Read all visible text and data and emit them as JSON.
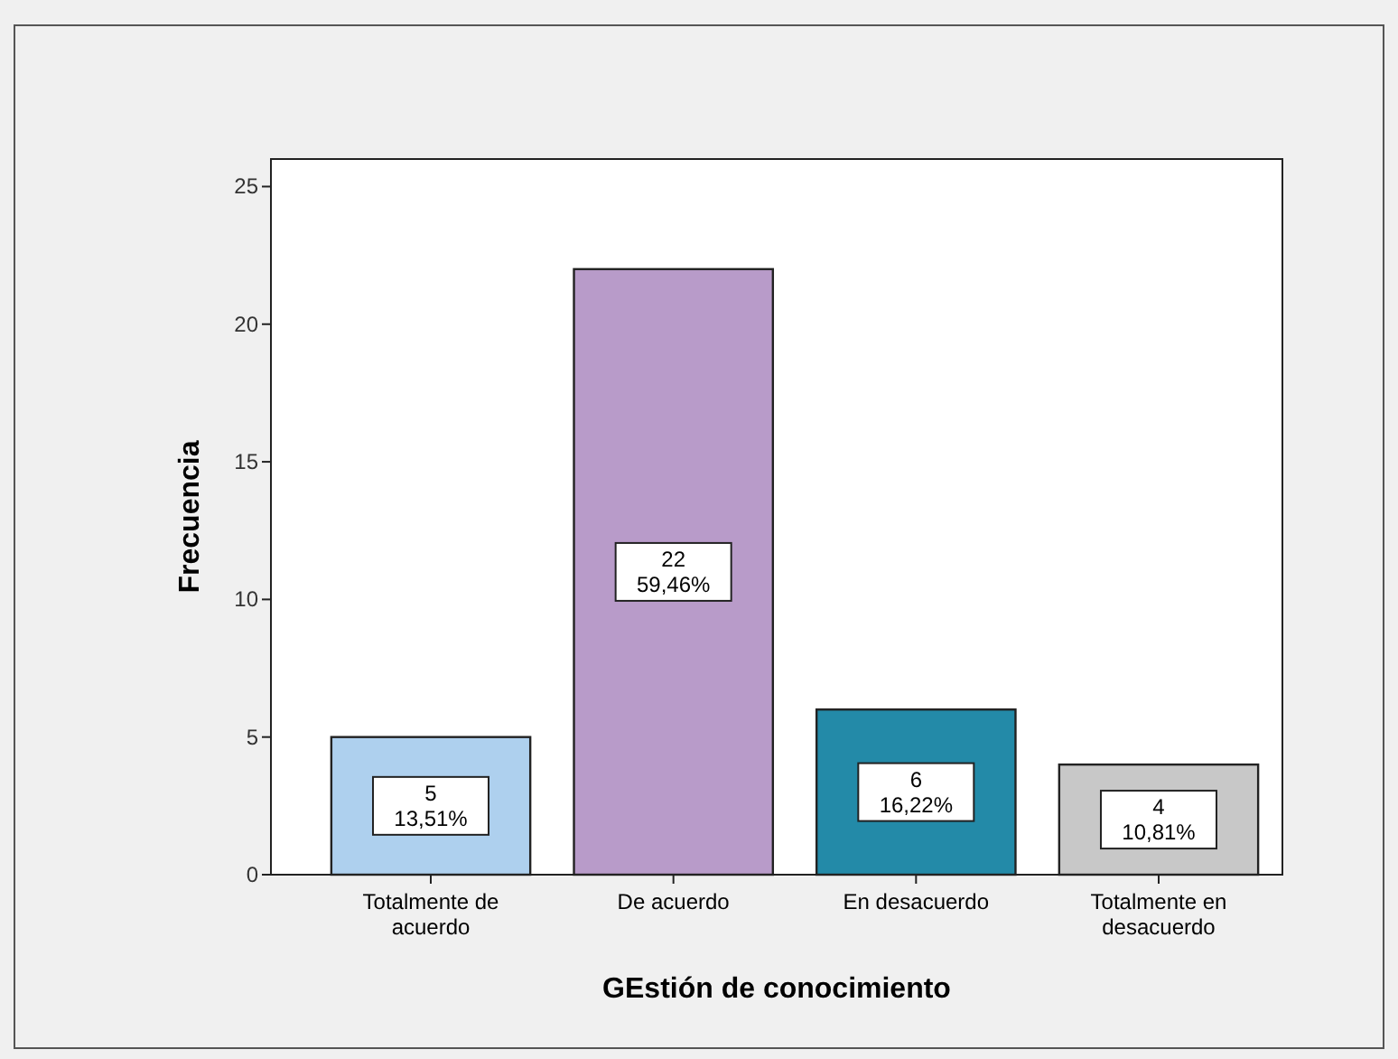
{
  "chart_data": {
    "type": "bar",
    "xlabel": "GEstión de conocimiento",
    "ylabel": "Frecuencia",
    "categories": [
      "Totalmente de acuerdo",
      "De acuerdo",
      "En desacuerdo",
      "Totalmente en desacuerdo"
    ],
    "values": [
      5,
      22,
      6,
      4
    ],
    "colors": [
      "#aed0ee",
      "#b89bc9",
      "#238aa8",
      "#c8c8c8"
    ],
    "value_labels": [
      "5\n13,51%",
      "22\n59,46%",
      "6\n16,22%",
      "4\n10,81%"
    ],
    "ylim": [
      0,
      26
    ],
    "yticks": [
      0,
      5,
      10,
      15,
      20,
      25
    ],
    "grid": false
  }
}
